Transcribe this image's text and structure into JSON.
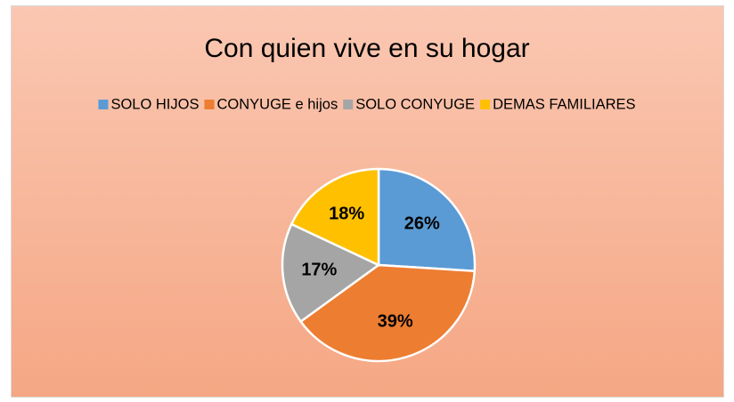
{
  "chart_data": {
    "type": "pie",
    "title": "Con quien vive en su hogar",
    "categories": [
      "SOLO HIJOS",
      "CONYUGE e hijos",
      "SOLO CONYUGE",
      "DEMAS FAMILIARES"
    ],
    "values": [
      26,
      39,
      17,
      18
    ],
    "value_labels": [
      "26%",
      "39%",
      "17%",
      "18%"
    ],
    "colors": [
      "#5b9bd5",
      "#ed7d31",
      "#a5a5a5",
      "#ffc000"
    ],
    "legend": "top"
  }
}
